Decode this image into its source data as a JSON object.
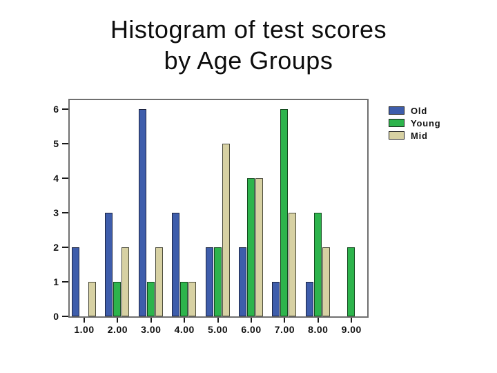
{
  "title": {
    "line1": "Histogram of test scores",
    "line2": "by Age Groups"
  },
  "chart_data": {
    "type": "bar",
    "title": "Histogram of test scores by Age Groups",
    "xlabel": "",
    "ylabel": "",
    "categories": [
      "1.00",
      "2.00",
      "3.00",
      "4.00",
      "5.00",
      "6.00",
      "7.00",
      "8.00",
      "9.00"
    ],
    "series": [
      {
        "name": "Old",
        "color": "#3e5dab",
        "border_color": "#1b2340",
        "values": [
          2,
          3,
          6,
          3,
          2,
          2,
          1,
          1,
          0
        ]
      },
      {
        "name": "Young",
        "color": "#2db44c",
        "border_color": "#134a1e",
        "values": [
          0,
          1,
          1,
          1,
          2,
          4,
          6,
          3,
          2
        ]
      },
      {
        "name": "Mid",
        "color": "#d7d1a3",
        "border_color": "#4a4a3a",
        "values": [
          1,
          2,
          2,
          1,
          5,
          4,
          3,
          2,
          0
        ]
      }
    ],
    "ylim": [
      0,
      6
    ],
    "yticks": [
      0,
      1,
      2,
      3,
      4,
      5,
      6
    ],
    "grid": false,
    "legend_position": "right",
    "note_zero_values": "a value of 0 means no bar drawn for that group"
  }
}
